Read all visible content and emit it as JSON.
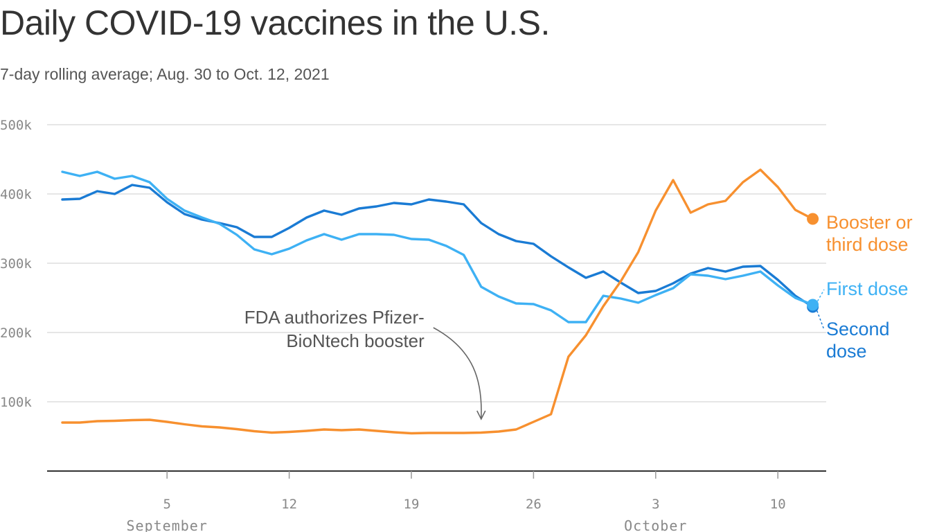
{
  "title": "Daily COVID-19 vaccines in the U.S.",
  "subtitle": "7-day rolling average; Aug. 30 to Oct. 12, 2021",
  "chart_data": {
    "type": "line",
    "x_start_date": "2021-08-30",
    "x": [
      "Aug 30",
      "Aug 31",
      "Sep 1",
      "Sep 2",
      "Sep 3",
      "Sep 4",
      "Sep 5",
      "Sep 6",
      "Sep 7",
      "Sep 8",
      "Sep 9",
      "Sep 10",
      "Sep 11",
      "Sep 12",
      "Sep 13",
      "Sep 14",
      "Sep 15",
      "Sep 16",
      "Sep 17",
      "Sep 18",
      "Sep 19",
      "Sep 20",
      "Sep 21",
      "Sep 22",
      "Sep 23",
      "Sep 24",
      "Sep 25",
      "Sep 26",
      "Sep 27",
      "Sep 28",
      "Sep 29",
      "Sep 30",
      "Oct 1",
      "Oct 2",
      "Oct 3",
      "Oct 4",
      "Oct 5",
      "Oct 6",
      "Oct 7",
      "Oct 8",
      "Oct 9",
      "Oct 10",
      "Oct 11",
      "Oct 12"
    ],
    "ylim": [
      0,
      500000
    ],
    "y_ticks": [
      {
        "value": 100000,
        "label": "100k"
      },
      {
        "value": 200000,
        "label": "200k"
      },
      {
        "value": 300000,
        "label": "300k"
      },
      {
        "value": 400000,
        "label": "400k"
      },
      {
        "value": 500000,
        "label": "500k"
      }
    ],
    "x_ticks": [
      {
        "index": 6,
        "label": "5"
      },
      {
        "index": 13,
        "label": "12"
      },
      {
        "index": 20,
        "label": "19"
      },
      {
        "index": 27,
        "label": "26"
      },
      {
        "index": 34,
        "label": "3"
      },
      {
        "index": 41,
        "label": "10"
      }
    ],
    "month_labels": [
      {
        "index": 6,
        "label": "September"
      },
      {
        "index": 34,
        "label": "October"
      }
    ],
    "grid": true,
    "series": [
      {
        "name": "Second dose",
        "label_lines": [
          "Second",
          "dose"
        ],
        "color": "#1a7bd4",
        "values": [
          392000,
          393000,
          404000,
          400000,
          413000,
          409000,
          388000,
          371000,
          363000,
          358000,
          352000,
          338000,
          338000,
          351000,
          366000,
          376000,
          370000,
          379000,
          382000,
          387000,
          385000,
          392000,
          389000,
          385000,
          358000,
          342000,
          332000,
          328000,
          310000,
          294000,
          279000,
          288000,
          272000,
          257000,
          260000,
          271000,
          285000,
          293000,
          288000,
          295000,
          296000,
          276000,
          253000,
          237000
        ]
      },
      {
        "name": "First dose",
        "label_lines": [
          "First dose"
        ],
        "color": "#3eb1f4",
        "values": [
          432000,
          426000,
          432000,
          422000,
          426000,
          417000,
          393000,
          376000,
          366000,
          357000,
          341000,
          320000,
          313000,
          321000,
          333000,
          342000,
          334000,
          342000,
          342000,
          341000,
          335000,
          334000,
          325000,
          312000,
          266000,
          252000,
          242000,
          241000,
          232000,
          215000,
          215000,
          253000,
          249000,
          243000,
          254000,
          264000,
          284000,
          282000,
          277000,
          282000,
          288000,
          268000,
          250000,
          240000
        ]
      },
      {
        "name": "Booster or third dose",
        "label_lines": [
          "Booster or",
          "third dose"
        ],
        "color": "#f7902f",
        "values": [
          70000,
          70000,
          72000,
          72500,
          73500,
          74000,
          71000,
          67500,
          64500,
          63000,
          60500,
          57500,
          55500,
          56500,
          58000,
          60000,
          59000,
          60000,
          58000,
          56000,
          54500,
          55000,
          55000,
          55000,
          55500,
          57000,
          60000,
          71000,
          82000,
          165000,
          196000,
          238000,
          274000,
          316000,
          376000,
          420000,
          373000,
          385000,
          390000,
          417000,
          435000,
          410000,
          377000,
          364000
        ]
      }
    ],
    "annotations": [
      {
        "text_lines": [
          "FDA authorizes Pfizer-",
          "BioNtech booster"
        ],
        "x_index": 24
      }
    ]
  }
}
